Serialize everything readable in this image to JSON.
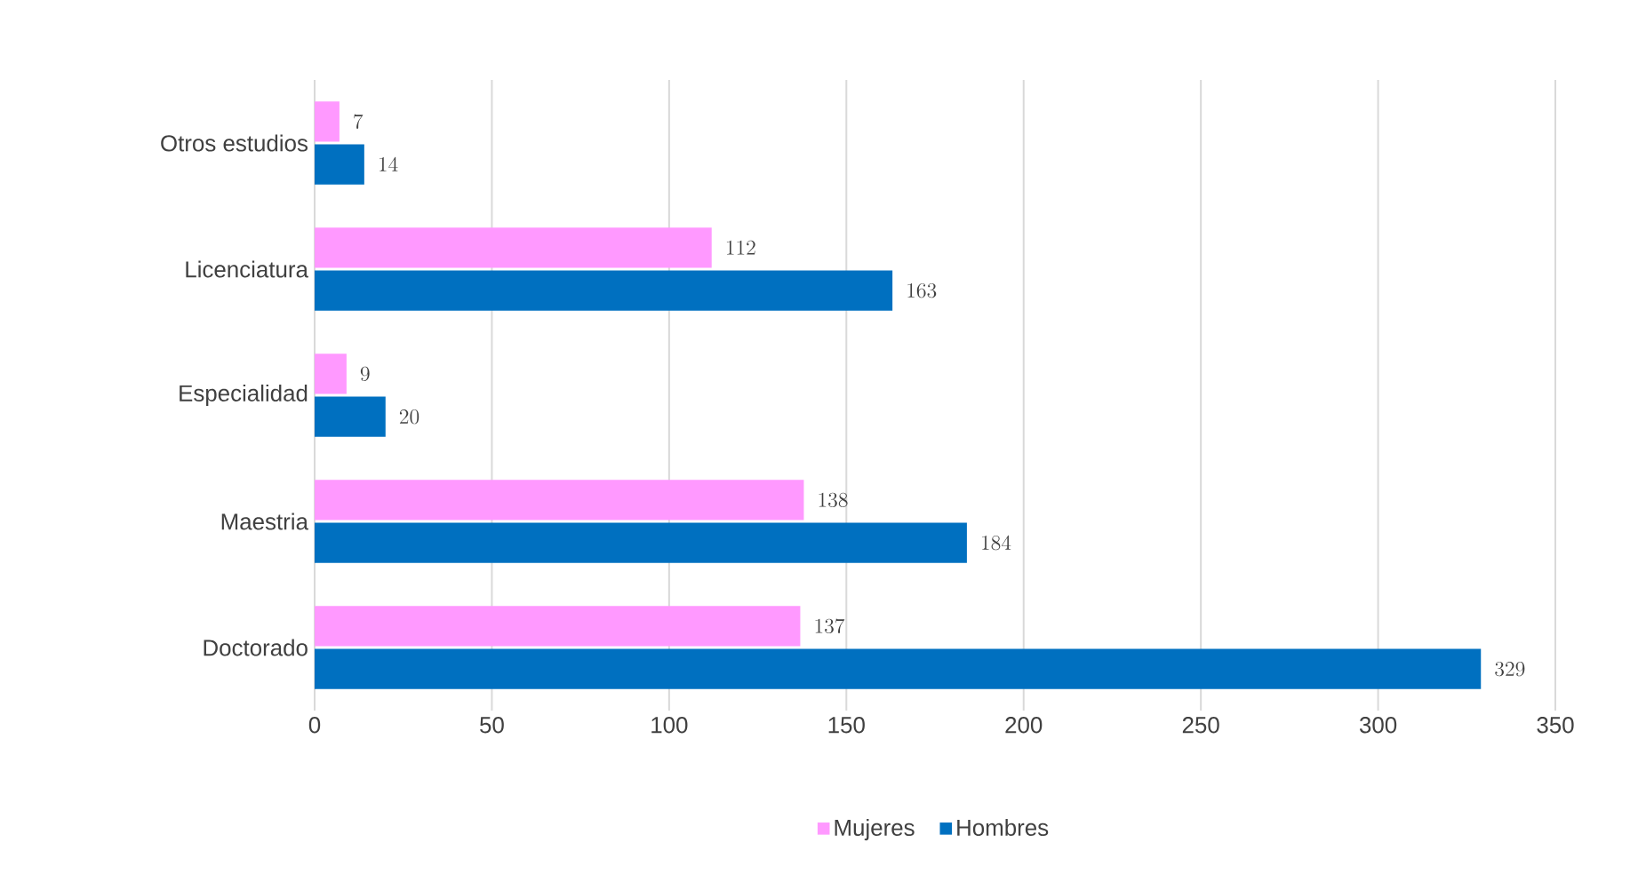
{
  "chart_data": {
    "type": "bar",
    "orientation": "horizontal",
    "categories": [
      "Otros estudios",
      "Licenciatura",
      "Especialidad",
      "Maestria",
      "Doctorado"
    ],
    "series": [
      {
        "name": "Mujeres",
        "color": "#ff99ff",
        "values": [
          7,
          112,
          9,
          138,
          137
        ]
      },
      {
        "name": "Hombres",
        "color": "#0070c0",
        "values": [
          14,
          163,
          20,
          184,
          329
        ]
      }
    ],
    "xlim": [
      0,
      350
    ],
    "xticks": [
      0,
      50,
      100,
      150,
      200,
      250,
      300,
      350
    ],
    "grid": "x",
    "legend": "bottom",
    "data_labels": true
  }
}
